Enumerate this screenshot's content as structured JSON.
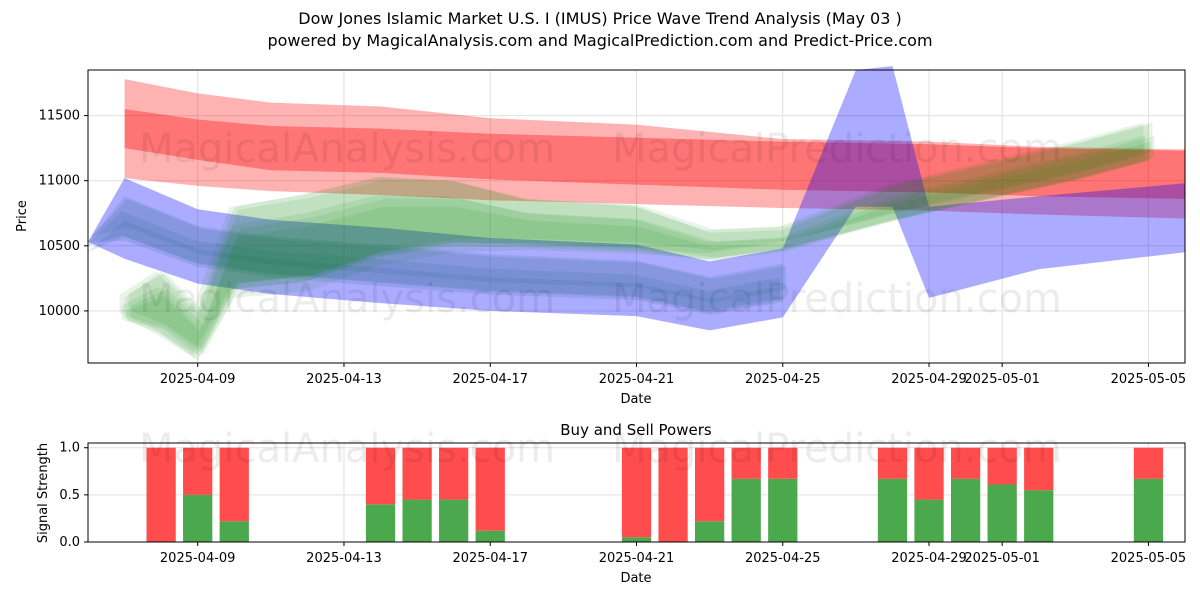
{
  "header": {
    "title": "Dow Jones Islamic Market U.S. I (IMUS) Price Wave Trend Analysis (May 03 )",
    "subtitle": "powered by MagicalAnalysis.com and MagicalPrediction.com and Predict-Price.com"
  },
  "watermarks": [
    "MagicalAnalysis.com",
    "MagicalPrediction.com"
  ],
  "colors": {
    "red": "#ff0000",
    "green": "#008000",
    "blue": "#0000ff",
    "bar_buy": "#4ca84c",
    "bar_sell": "#ff4c4c"
  },
  "chart_data": [
    {
      "type": "area",
      "title": "",
      "xlabel": "Date",
      "ylabel": "Price",
      "x_ticks": [
        "2025-04-09",
        "2025-04-13",
        "2025-04-17",
        "2025-04-21",
        "2025-04-25",
        "2025-04-29",
        "2025-05-01",
        "2025-05-05"
      ],
      "y_ticks": [
        10000,
        10500,
        11000,
        11500
      ],
      "xlim": [
        "2025-04-06",
        "2025-05-06"
      ],
      "ylim": [
        9600,
        11850
      ],
      "grid": true,
      "series": [
        {
          "color": "red",
          "x": [
            "2025-04-07",
            "2025-04-09",
            "2025-04-11",
            "2025-04-14",
            "2025-04-17",
            "2025-04-21",
            "2025-04-25",
            "2025-04-29",
            "2025-05-02",
            "2025-05-06"
          ],
          "upper": [
            11780,
            11670,
            11600,
            11570,
            11480,
            11430,
            11320,
            11300,
            11260,
            11240
          ],
          "lower": [
            11020,
            10960,
            10920,
            10890,
            10850,
            10820,
            10790,
            10770,
            10740,
            10710
          ],
          "core_upper": [
            11550,
            11470,
            11420,
            11400,
            11360,
            11330,
            11300,
            11280,
            11250,
            11230
          ],
          "core_lower": [
            11250,
            11160,
            11080,
            11060,
            11010,
            10970,
            10930,
            10910,
            10880,
            10860
          ]
        },
        {
          "color": "blue",
          "x": [
            "2025-04-06",
            "2025-04-07",
            "2025-04-09",
            "2025-04-11",
            "2025-04-14",
            "2025-04-17",
            "2025-04-21",
            "2025-04-23",
            "2025-04-25",
            "2025-04-27",
            "2025-04-28",
            "2025-04-29",
            "2025-05-02",
            "2025-05-06"
          ],
          "upper": [
            10530,
            11020,
            10780,
            10700,
            10640,
            10560,
            10510,
            10380,
            10480,
            11850,
            11880,
            10800,
            10880,
            10980
          ],
          "lower": [
            10530,
            10400,
            10210,
            10130,
            10060,
            10000,
            9960,
            9850,
            9950,
            10800,
            10800,
            10100,
            10320,
            10450
          ]
        },
        {
          "color": "green",
          "x": [
            "2025-04-07",
            "2025-04-08",
            "2025-04-09",
            "2025-04-10",
            "2025-04-12",
            "2025-04-14",
            "2025-04-16",
            "2025-04-18",
            "2025-04-21",
            "2025-04-23",
            "2025-04-25",
            "2025-04-28",
            "2025-05-01",
            "2025-05-03",
            "2025-05-05"
          ],
          "upper": [
            10100,
            10300,
            10000,
            10800,
            10900,
            11030,
            11000,
            10850,
            10800,
            10600,
            10620,
            10950,
            11150,
            11280,
            11430
          ],
          "lower": [
            9950,
            9800,
            9620,
            10100,
            10150,
            10350,
            10450,
            10470,
            10440,
            10400,
            10480,
            10690,
            10880,
            11000,
            11150
          ]
        }
      ]
    },
    {
      "type": "bar",
      "title": "Buy and Sell Powers",
      "xlabel": "Date",
      "ylabel": "Signal Strength",
      "x_ticks": [
        "2025-04-09",
        "2025-04-13",
        "2025-04-17",
        "2025-04-21",
        "2025-04-25",
        "2025-04-29",
        "2025-05-01",
        "2025-05-05"
      ],
      "y_ticks": [
        "0.0",
        "0.5",
        "1.0"
      ],
      "ylim": [
        0,
        1.05
      ],
      "grid": true,
      "categories": [
        "2025-04-08",
        "2025-04-09",
        "2025-04-10",
        "2025-04-14",
        "2025-04-15",
        "2025-04-16",
        "2025-04-17",
        "2025-04-21",
        "2025-04-22",
        "2025-04-23",
        "2025-04-24",
        "2025-04-25",
        "2025-04-28",
        "2025-04-29",
        "2025-04-30",
        "2025-05-01",
        "2025-05-02",
        "2025-05-05"
      ],
      "series": [
        {
          "name": "Buy",
          "values": [
            0.0,
            0.5,
            0.22,
            0.4,
            0.45,
            0.45,
            0.12,
            0.05,
            0.0,
            0.22,
            0.67,
            0.67,
            0.67,
            0.45,
            0.67,
            0.61,
            0.55,
            0.67
          ]
        },
        {
          "name": "Sell",
          "values": [
            1.0,
            0.5,
            0.78,
            0.6,
            0.55,
            0.55,
            0.88,
            0.95,
            1.0,
            0.78,
            0.33,
            0.33,
            0.33,
            0.55,
            0.33,
            0.39,
            0.45,
            0.33
          ]
        }
      ]
    }
  ]
}
